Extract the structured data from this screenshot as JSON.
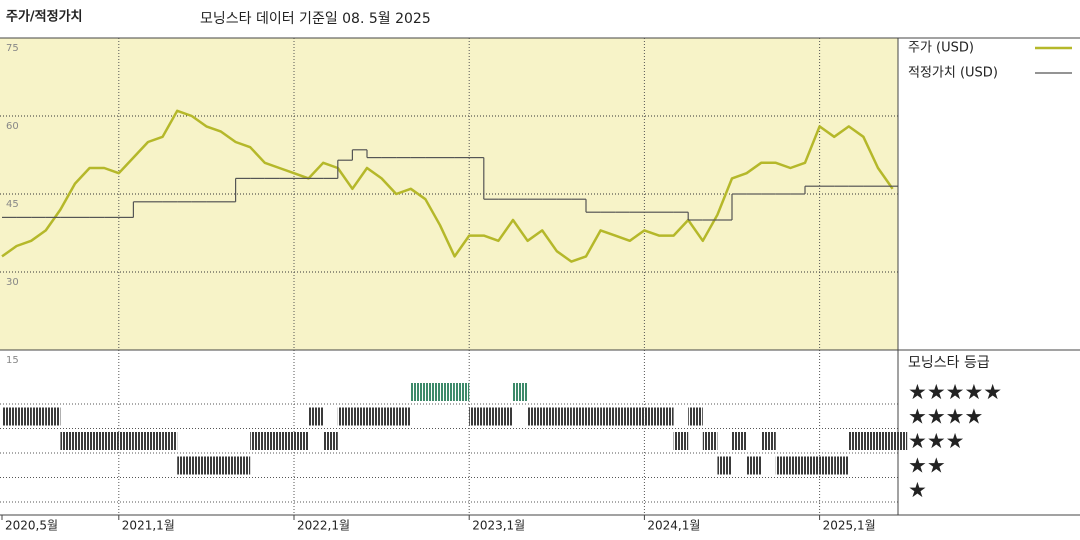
{
  "chart_data": [
    {
      "type": "line",
      "title": "주가/적정가치",
      "subtitle": "모닝스타 데이터 기준일 08. 5월 2025",
      "x": [
        "2020-05",
        "2020-06",
        "2020-07",
        "2020-08",
        "2020-09",
        "2020-10",
        "2020-11",
        "2020-12",
        "2021-01",
        "2021-02",
        "2021-03",
        "2021-04",
        "2021-05",
        "2021-06",
        "2021-07",
        "2021-08",
        "2021-09",
        "2021-10",
        "2021-11",
        "2021-12",
        "2022-01",
        "2022-02",
        "2022-03",
        "2022-04",
        "2022-05",
        "2022-06",
        "2022-07",
        "2022-08",
        "2022-09",
        "2022-10",
        "2022-11",
        "2022-12",
        "2023-01",
        "2023-02",
        "2023-03",
        "2023-04",
        "2023-05",
        "2023-06",
        "2023-07",
        "2023-08",
        "2023-09",
        "2023-10",
        "2023-11",
        "2023-12",
        "2024-01",
        "2024-02",
        "2024-03",
        "2024-04",
        "2024-05",
        "2024-06",
        "2024-07",
        "2024-08",
        "2024-09",
        "2024-10",
        "2024-11",
        "2024-12",
        "2025-01",
        "2025-02",
        "2025-03",
        "2025-04",
        "2025-05",
        "2025-06"
      ],
      "series": [
        {
          "name": "주가 (USD)",
          "color": "#b5b82a",
          "values": [
            33,
            35,
            36,
            38,
            42,
            47,
            50,
            50,
            49,
            52,
            55,
            56,
            61,
            60,
            58,
            57,
            55,
            54,
            51,
            50,
            49,
            48,
            51,
            50,
            46,
            50,
            48,
            45,
            46,
            44,
            39,
            33,
            37,
            37,
            36,
            40,
            36,
            38,
            34,
            32,
            33,
            38,
            37,
            36,
            38,
            37,
            37,
            40,
            36,
            41,
            48,
            49,
            51,
            51,
            50,
            51,
            58,
            56,
            58,
            56,
            50,
            46
          ]
        },
        {
          "name": "적정가치 (USD)",
          "color": "#555555",
          "step": true,
          "values": [
            40.5,
            40.5,
            40.5,
            40.5,
            40.5,
            40.5,
            40.5,
            40.5,
            40.5,
            43.5,
            43.5,
            43.5,
            43.5,
            43.5,
            43.5,
            43.5,
            48,
            48,
            48,
            48,
            48,
            48,
            48,
            51.5,
            53.5,
            52,
            52,
            52,
            52,
            52,
            52,
            52,
            52,
            44,
            44,
            44,
            44,
            44,
            44,
            44,
            41.5,
            41.5,
            41.5,
            41.5,
            41.5,
            41.5,
            41.5,
            40,
            40,
            40,
            45,
            45,
            45,
            45,
            45,
            46.5,
            46.5,
            46.5,
            46.5,
            46.5,
            46.5,
            46.5
          ]
        }
      ],
      "ylim": [
        15,
        75
      ],
      "yticks": [
        15,
        30,
        45,
        60,
        75
      ],
      "grid": true,
      "xticks": [
        {
          "value": "2020-05",
          "label": "2020,5월"
        },
        {
          "value": "2021-01",
          "label": "2021,1월"
        },
        {
          "value": "2022-01",
          "label": "2022,1월"
        },
        {
          "value": "2023-01",
          "label": "2023,1월"
        },
        {
          "value": "2024-01",
          "label": "2024,1월"
        },
        {
          "value": "2025-01",
          "label": "2025,1월"
        }
      ],
      "background": "#f7f3c8"
    },
    {
      "type": "rating-strip",
      "title": "모닝스타 등급",
      "values": [
        4,
        4,
        4,
        4,
        3,
        3,
        3,
        3,
        3,
        3,
        3,
        3,
        2,
        2,
        2,
        2,
        2,
        3,
        3,
        3,
        3,
        4,
        3,
        4,
        4,
        4,
        4,
        4,
        5,
        5,
        5,
        5,
        4,
        4,
        4,
        5,
        4,
        4,
        4,
        4,
        4,
        4,
        4,
        4,
        4,
        4,
        3,
        4,
        3,
        2,
        3,
        2,
        3,
        2,
        2,
        2,
        2,
        2,
        3,
        3,
        3,
        3
      ],
      "levels": [
        {
          "value": 5,
          "label": "★★★★★"
        },
        {
          "value": 4,
          "label": "★★★★"
        },
        {
          "value": 3,
          "label": "★★★"
        },
        {
          "value": 2,
          "label": "★★"
        },
        {
          "value": 1,
          "label": "★"
        }
      ],
      "colors": [
        "#3a3a3a",
        "#3a3a3a",
        "#3a3a3a",
        "#3a3a3a",
        "#3d8a6a"
      ]
    }
  ]
}
